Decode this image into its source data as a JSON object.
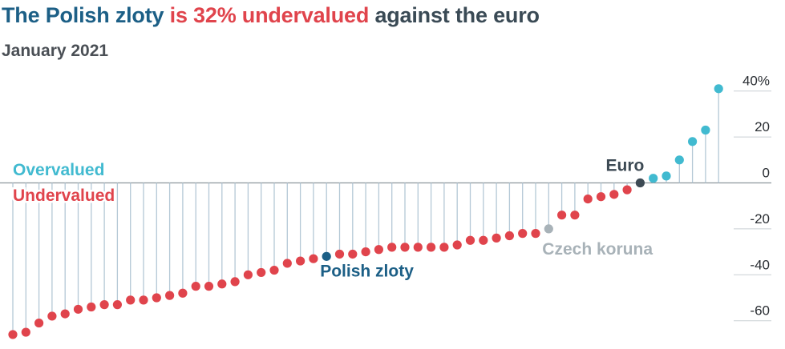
{
  "title": {
    "part1": "The Polish zloty",
    "part2": "is 32% undervalued",
    "part3": "against the euro"
  },
  "subtitle": "January 2021",
  "colors": {
    "undervalued": "#e0444c",
    "overvalued": "#41bad0",
    "highlight_pln": "#1c5f86",
    "highlight_czk": "#a8b2b8",
    "euro": "#3d4a54",
    "stem": "#b4c8d6",
    "grid": "#c9cfd4"
  },
  "chart_data": {
    "type": "lollipop",
    "title": "The Polish zloty is 32% undervalued against the euro",
    "subtitle": "January 2021",
    "ylim": [
      -62,
      41
    ],
    "yticks": [
      40,
      20,
      0,
      -20,
      -40,
      -60
    ],
    "ytick_labels": [
      "40%",
      "20",
      "0",
      "-20",
      "-40",
      "-60"
    ],
    "legend_over": "Overvalued",
    "legend_under": "Undervalued",
    "values": [
      -66,
      -65,
      -61,
      -58,
      -57,
      -55,
      -54,
      -53,
      -53,
      -51,
      -51,
      -50,
      -49,
      -48,
      -45,
      -45,
      -44,
      -43,
      -40,
      -39,
      -38,
      -35,
      -34,
      -33,
      -32,
      -31,
      -31,
      -30,
      -29,
      -28,
      -28,
      -28,
      -28,
      -28,
      -27,
      -25,
      -25,
      -24,
      -23,
      -22,
      -22,
      -20,
      -14,
      -14,
      -7,
      -6,
      -5,
      -3,
      0,
      2,
      3,
      10,
      18,
      23,
      41
    ],
    "highlights": [
      {
        "index": 24,
        "label": "Polish zloty",
        "value": -32
      },
      {
        "index": 41,
        "label": "Czech koruna",
        "value": -20
      },
      {
        "index": 48,
        "label": "Euro",
        "value": 0
      }
    ]
  }
}
